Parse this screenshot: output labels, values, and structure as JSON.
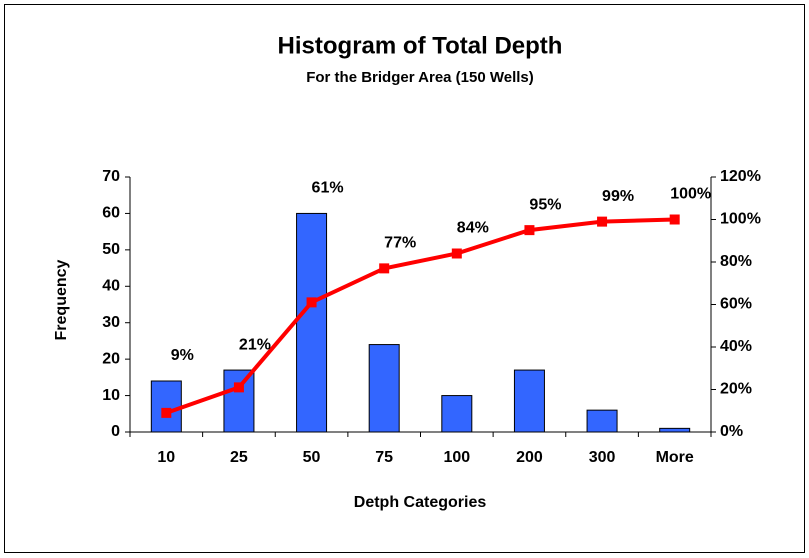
{
  "chart_data": {
    "type": "bar_line",
    "title": "Histogram of Total Depth",
    "subtitle": "For the Bridger Area (150 Wells)",
    "x_label": "Detph Categories",
    "y_label": "Frequency",
    "categories": [
      "10",
      "25",
      "50",
      "75",
      "100",
      "200",
      "300",
      "More"
    ],
    "series": [
      {
        "type": "bar",
        "color": "#3366ff",
        "values": [
          14,
          17,
          60,
          24,
          10,
          17,
          6,
          1
        ]
      },
      {
        "type": "line",
        "axis": "y2",
        "color": "#ff0000",
        "values": [
          9,
          21,
          61,
          77,
          84,
          95,
          99,
          100
        ],
        "value_labels": [
          "9%",
          "21%",
          "61%",
          "77%",
          "84%",
          "95%",
          "99%",
          "100%"
        ]
      }
    ],
    "ylim": [
      0,
      70
    ],
    "yticks": [
      0,
      10,
      20,
      30,
      40,
      50,
      60,
      70
    ],
    "y2lim": [
      0,
      120
    ],
    "y2ticks": [
      {
        "value": 0,
        "label": "0%"
      },
      {
        "value": 20,
        "label": "20%"
      },
      {
        "value": 40,
        "label": "40%"
      },
      {
        "value": 60,
        "label": "60%"
      },
      {
        "value": 80,
        "label": "80%"
      },
      {
        "value": 100,
        "label": "100%"
      },
      {
        "value": 120,
        "label": "120%"
      }
    ],
    "grid": false
  }
}
